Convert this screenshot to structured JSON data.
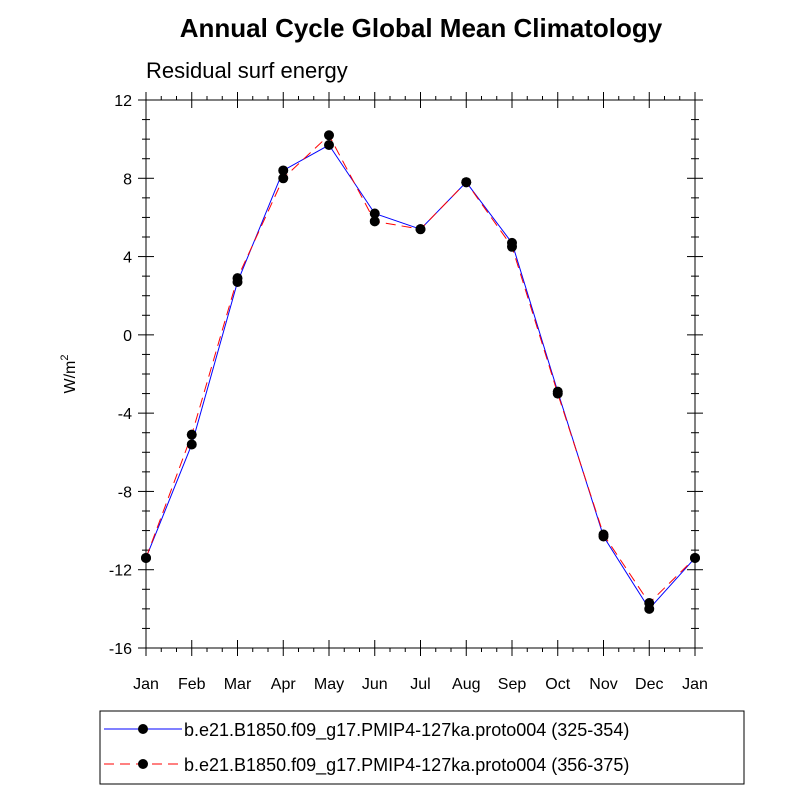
{
  "chart_data": {
    "type": "line",
    "title": "Annual Cycle Global Mean Climatology",
    "subtitle": "Residual surf energy",
    "ylabel": "W/m",
    "ylabel_superscript": "2",
    "xlabel": "",
    "categories": [
      "Jan",
      "Feb",
      "Mar",
      "Apr",
      "May",
      "Jun",
      "Jul",
      "Aug",
      "Sep",
      "Oct",
      "Nov",
      "Dec",
      "Jan"
    ],
    "ylim": [
      -16,
      12
    ],
    "yticks": [
      -16,
      -12,
      -8,
      -4,
      0,
      4,
      8,
      12
    ],
    "ytick_labels": [
      "-16",
      "-12",
      "-8",
      "-4",
      "0",
      "4",
      "8",
      "12"
    ],
    "series": [
      {
        "name": "b.e21.B1850.f09_g17.PMIP4-127ka.proto004 (325-354)",
        "color": "#0000ff",
        "dash": "solid",
        "marker": "filled-circle",
        "values": [
          -11.4,
          -5.6,
          2.7,
          8.4,
          9.7,
          6.2,
          5.4,
          7.8,
          4.7,
          -2.9,
          -10.3,
          -14.0,
          -11.4
        ]
      },
      {
        "name": "b.e21.B1850.f09_g17.PMIP4-127ka.proto004 (356-375)",
        "color": "#ff0000",
        "dash": "dashed",
        "marker": "filled-circle",
        "values": [
          -11.4,
          -5.1,
          2.9,
          8.0,
          10.2,
          5.8,
          5.4,
          7.8,
          4.5,
          -3.0,
          -10.2,
          -13.7,
          -11.4
        ]
      }
    ],
    "legend_position": "bottom"
  }
}
